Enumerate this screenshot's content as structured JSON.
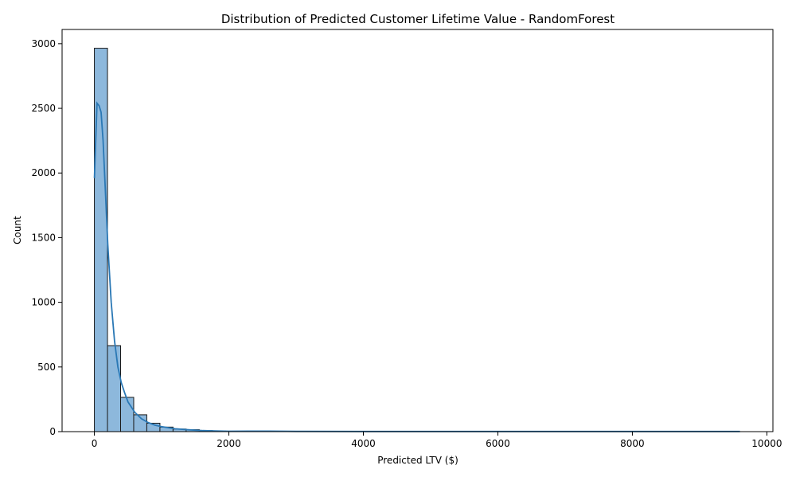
{
  "chart_data": {
    "type": "bar",
    "title": "Distribution of Predicted Customer Lifetime Value - RandomForest",
    "xlabel": "Predicted LTV ($)",
    "ylabel": "Count",
    "xlim": [
      -480,
      10090
    ],
    "ylim": [
      0,
      3110
    ],
    "x_ticks": [
      0,
      2000,
      4000,
      6000,
      8000,
      10000
    ],
    "y_ticks": [
      0,
      500,
      1000,
      1500,
      2000,
      2500,
      3000
    ],
    "bin_width": 195,
    "series": [
      {
        "kind": "histogram",
        "bin_starts": [
          0,
          195,
          390,
          585,
          780,
          975,
          1170,
          1365,
          1560,
          1755,
          1950,
          2145,
          2340,
          2535
        ],
        "values": [
          2965,
          665,
          265,
          130,
          65,
          35,
          20,
          15,
          8,
          5,
          3,
          3,
          2,
          2
        ]
      },
      {
        "kind": "kde",
        "x": [
          0,
          40,
          70,
          100,
          130,
          160,
          200,
          250,
          300,
          350,
          400,
          450,
          500,
          600,
          700,
          800,
          900,
          1000,
          1200,
          1400,
          1600,
          1800,
          2000,
          2300,
          2600,
          3000,
          4000,
          6000,
          8000,
          9600
        ],
        "values": [
          1960,
          2540,
          2520,
          2470,
          2250,
          1900,
          1450,
          1000,
          700,
          500,
          380,
          300,
          230,
          150,
          100,
          70,
          50,
          38,
          22,
          14,
          8,
          5,
          3,
          4,
          4,
          2,
          1,
          1,
          1,
          1
        ]
      }
    ],
    "colors": {
      "bar_fill": "#8db8dc",
      "bar_edge": "#1a1a1a",
      "kde_line": "#2a78b5"
    },
    "grid": false
  }
}
